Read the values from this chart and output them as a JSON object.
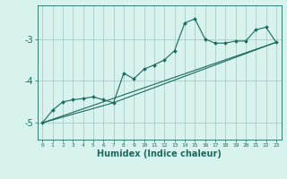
{
  "xlabel": "Humidex (Indice chaleur)",
  "bg_color": "#d8f2ee",
  "grid_color": "#aaccc8",
  "line_color": "#1a6b5e",
  "xlim": [
    -0.5,
    23.5
  ],
  "ylim": [
    -5.4,
    -2.2
  ],
  "yticks": [
    -5,
    -4,
    -3
  ],
  "xticks": [
    0,
    1,
    2,
    3,
    4,
    5,
    6,
    7,
    8,
    9,
    10,
    11,
    12,
    13,
    14,
    15,
    16,
    17,
    18,
    19,
    20,
    21,
    22,
    23
  ],
  "curve_x": [
    0,
    1,
    2,
    3,
    4,
    5,
    6,
    7,
    8,
    9,
    10,
    11,
    12,
    13,
    14,
    15,
    16,
    17,
    18,
    19,
    20,
    21,
    22,
    23
  ],
  "curve_y": [
    -5.0,
    -4.7,
    -4.5,
    -4.45,
    -4.42,
    -4.38,
    -4.45,
    -4.52,
    -3.82,
    -3.95,
    -3.72,
    -3.62,
    -3.5,
    -3.28,
    -2.62,
    -2.52,
    -3.0,
    -3.1,
    -3.1,
    -3.05,
    -3.05,
    -2.78,
    -2.72,
    -3.08
  ],
  "line1_x": [
    0,
    23
  ],
  "line1_y": [
    -5.0,
    -3.08
  ],
  "line2_x": [
    0,
    7,
    23
  ],
  "line2_y": [
    -5.0,
    -4.52,
    -3.08
  ]
}
